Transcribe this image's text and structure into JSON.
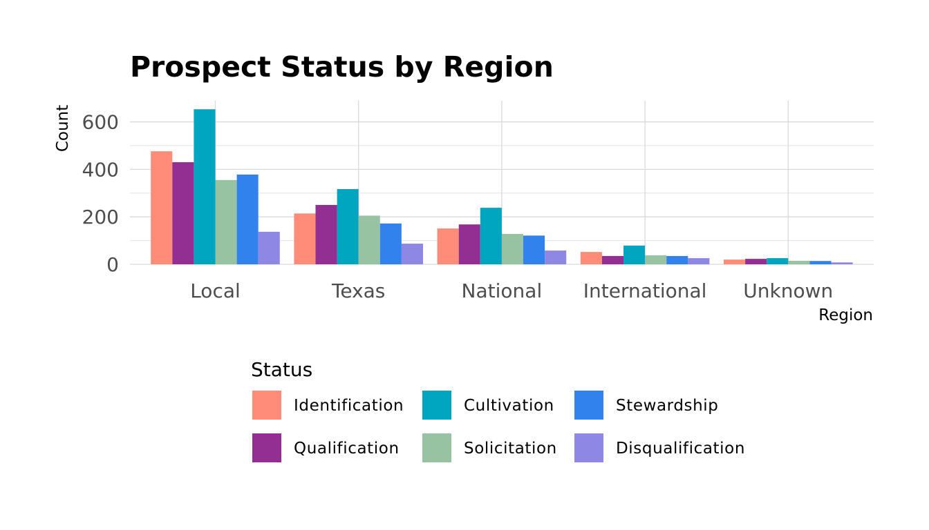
{
  "chart_data": {
    "type": "bar",
    "title": "Prospect Status by Region",
    "xlabel": "Region",
    "ylabel": "Count",
    "categories": [
      "Local",
      "Texas",
      "National",
      "International",
      "Unknown"
    ],
    "ylim": [
      0,
      690
    ],
    "y_ticks": [
      0,
      200,
      400,
      600
    ],
    "y_tick_labels": [
      "0",
      "200",
      "400",
      "600"
    ],
    "grid": true,
    "legend_position": "bottom",
    "legend_title": "Status",
    "series": [
      {
        "name": "Identification",
        "color": "#FF8C78",
        "values": [
          476,
          214,
          151,
          52,
          20
        ]
      },
      {
        "name": "Qualification",
        "color": "#932F93",
        "values": [
          430,
          250,
          168,
          35,
          23
        ]
      },
      {
        "name": "Cultivation",
        "color": "#00A6BF",
        "values": [
          653,
          317,
          238,
          79,
          26
        ]
      },
      {
        "name": "Solicitation",
        "color": "#98C3A3",
        "values": [
          355,
          205,
          128,
          38,
          15
        ]
      },
      {
        "name": "Stewardship",
        "color": "#3282EE",
        "values": [
          378,
          172,
          121,
          35,
          14
        ]
      },
      {
        "name": "Disqualification",
        "color": "#8F87E4",
        "values": [
          137,
          87,
          58,
          26,
          8
        ]
      }
    ]
  }
}
